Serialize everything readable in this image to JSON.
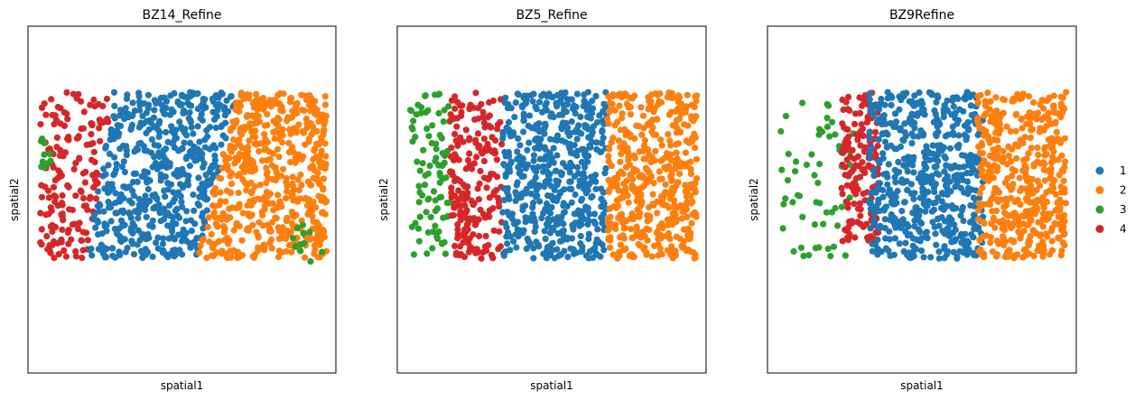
{
  "legend": {
    "position": "right",
    "items": [
      {
        "label": "1",
        "color": "#1f77b4"
      },
      {
        "label": "2",
        "color": "#ff7f0e"
      },
      {
        "label": "3",
        "color": "#2ca02c"
      },
      {
        "label": "4",
        "color": "#d62728"
      }
    ]
  },
  "chart_data": [
    {
      "type": "scatter",
      "title": "BZ14_Refine",
      "xlabel": "spatial1",
      "ylabel": "spatial2",
      "xlim": [
        0,
        1
      ],
      "ylim": [
        0,
        1
      ],
      "ticks": "none",
      "grid": false,
      "clusters": [
        {
          "name": "4",
          "color": "#d62728",
          "count": 170,
          "x_range": [
            0.04,
            0.28
          ],
          "y_range": [
            0.33,
            0.81
          ],
          "x_boundary_hi": "sloped: ~0.28 at top to ~0.19 at bottom"
        },
        {
          "name": "1",
          "color": "#1f77b4",
          "count": 560,
          "x_range": [
            0.19,
            0.68
          ],
          "y_range": [
            0.33,
            0.81
          ]
        },
        {
          "name": "2",
          "color": "#ff7f0e",
          "count": 560,
          "x_range": [
            0.58,
            0.97
          ],
          "y_range": [
            0.33,
            0.81
          ]
        },
        {
          "name": "3",
          "color": "#2ca02c",
          "count": 22,
          "regions": [
            {
              "x_range": [
                0.04,
                0.08
              ],
              "y_range": [
                0.58,
                0.68
              ]
            },
            {
              "x_range": [
                0.86,
                0.96
              ],
              "y_range": [
                0.32,
                0.44
              ]
            }
          ]
        }
      ]
    },
    {
      "type": "scatter",
      "title": "BZ5_Refine",
      "xlabel": "spatial1",
      "ylabel": "spatial2",
      "xlim": [
        0,
        1
      ],
      "ylim": [
        0,
        1
      ],
      "ticks": "none",
      "grid": false,
      "clusters": [
        {
          "name": "3",
          "color": "#2ca02c",
          "count": 90,
          "x_range": [
            0.04,
            0.17
          ],
          "y_range": [
            0.33,
            0.81
          ]
        },
        {
          "name": "4",
          "color": "#d62728",
          "count": 210,
          "x_range": [
            0.17,
            0.34
          ],
          "y_range": [
            0.33,
            0.81
          ]
        },
        {
          "name": "1",
          "color": "#1f77b4",
          "count": 540,
          "x_range": [
            0.34,
            0.68
          ],
          "y_range": [
            0.33,
            0.81
          ]
        },
        {
          "name": "2",
          "color": "#ff7f0e",
          "count": 460,
          "x_range": [
            0.68,
            0.97
          ],
          "y_range": [
            0.33,
            0.81
          ]
        }
      ]
    },
    {
      "type": "scatter",
      "title": "BZ9Refine",
      "xlabel": "spatial1",
      "ylabel": "spatial2",
      "xlim": [
        0,
        1
      ],
      "ylim": [
        0,
        1
      ],
      "ticks": "none",
      "grid": false,
      "clusters": [
        {
          "name": "3",
          "color": "#2ca02c",
          "count": 60,
          "x_range": [
            0.04,
            0.28
          ],
          "y_range": [
            0.33,
            0.78
          ]
        },
        {
          "name": "4",
          "color": "#d62728",
          "count": 160,
          "x_range": [
            0.24,
            0.36
          ],
          "y_range": [
            0.38,
            0.81
          ]
        },
        {
          "name": "1",
          "color": "#1f77b4",
          "count": 560,
          "x_range": [
            0.33,
            0.7
          ],
          "y_range": [
            0.33,
            0.81
          ]
        },
        {
          "name": "2",
          "color": "#ff7f0e",
          "count": 460,
          "x_range": [
            0.68,
            0.97
          ],
          "y_range": [
            0.33,
            0.81
          ]
        }
      ]
    }
  ]
}
